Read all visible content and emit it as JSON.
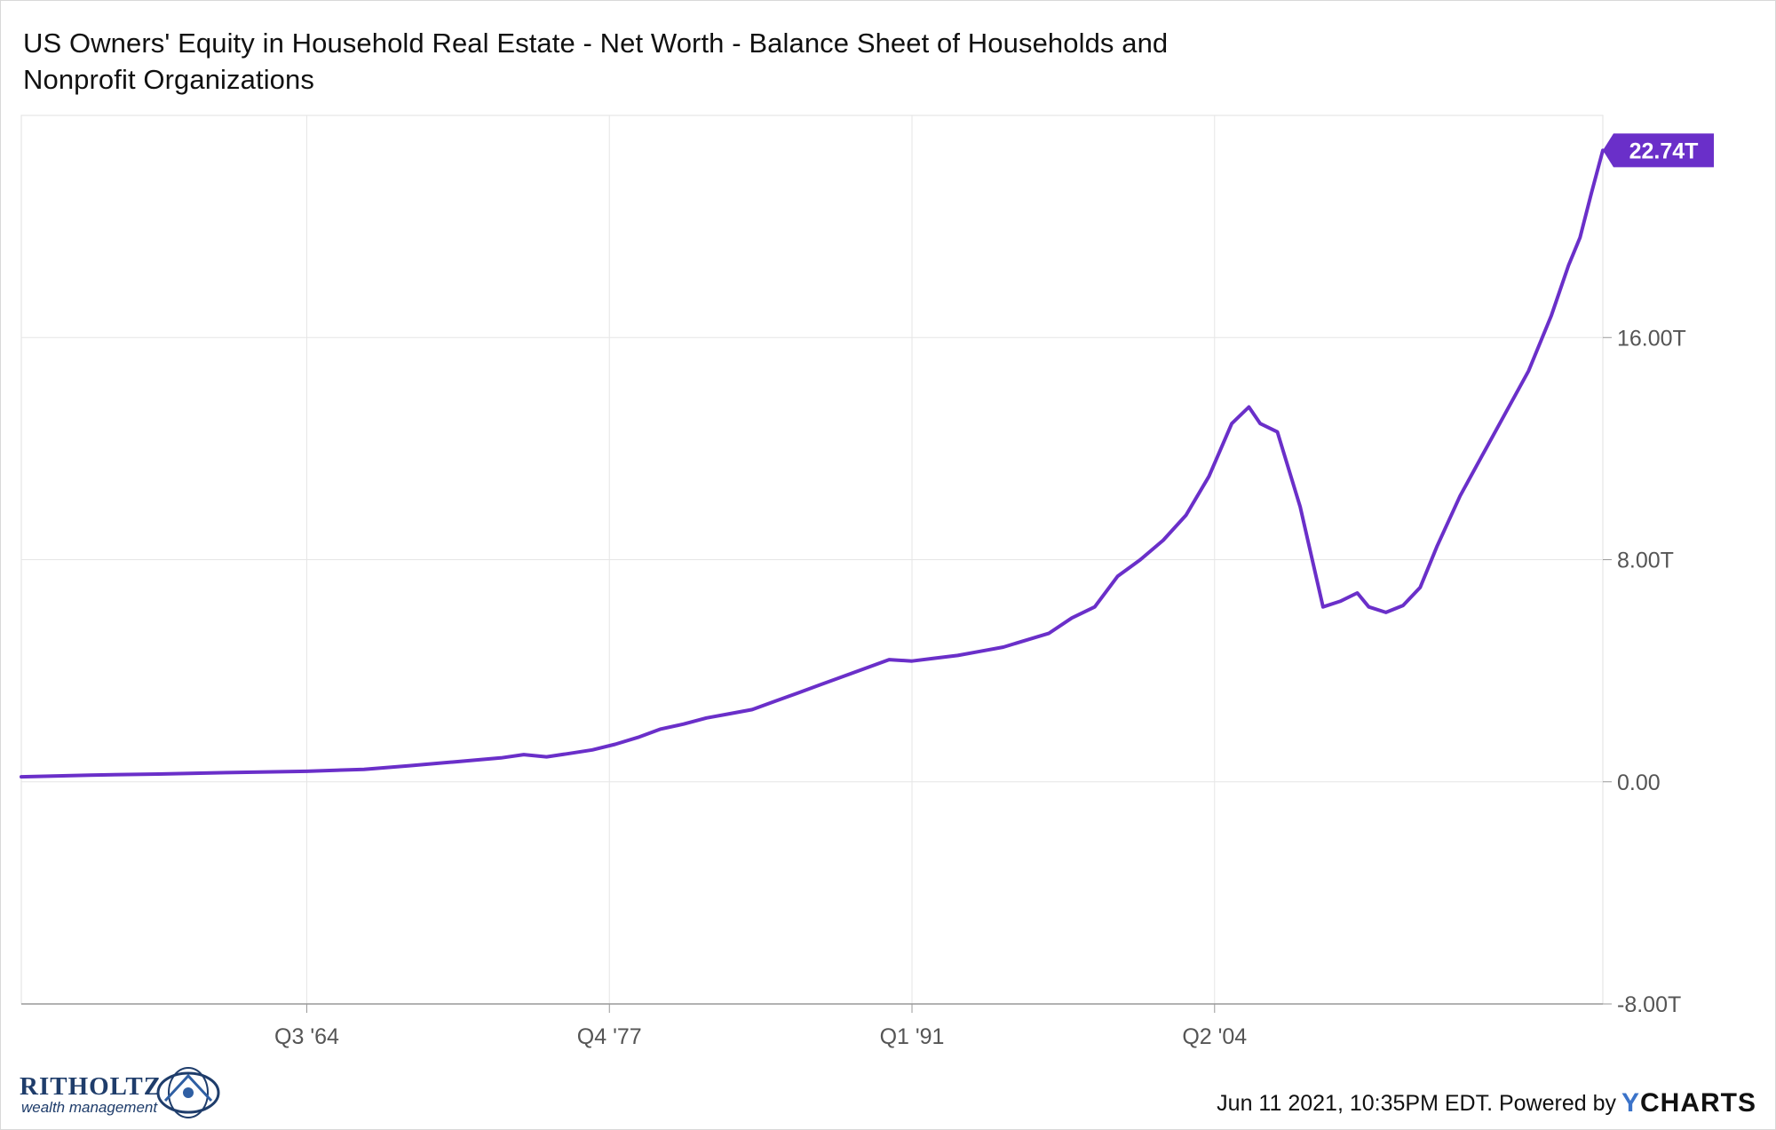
{
  "title": {
    "line1": "US Owners' Equity in Household Real Estate - Net Worth - Balance Sheet of Households and",
    "line2": "Nonprofit Organizations"
  },
  "footer": {
    "credit": "Jun 11 2021, 10:35PM EDT. Powered by",
    "ycharts_y": "Y",
    "ycharts_rest": "CHARTS",
    "brand_name": "RITHOLTZ",
    "brand_sub": "wealth management"
  },
  "colors": {
    "line": "#6a2fc9",
    "grid": "#e6e6e6",
    "axis_text": "#555555",
    "badge_bg": "#6a2fc9",
    "badge_text": "#ffffff"
  },
  "chart_data": {
    "type": "line",
    "title": "US Owners' Equity in Household Real Estate - Net Worth - Balance Sheet of Households and Nonprofit Organizations",
    "x_unit": "year",
    "xlim": [
      1952.0,
      2021.25
    ],
    "ylim": [
      -8,
      24
    ],
    "y_ticks": [
      -8,
      0,
      8,
      16
    ],
    "y_tick_labels": [
      "-8.00T",
      "0.00",
      "8.00T",
      "16.00T"
    ],
    "x_ticks": [
      1964.5,
      1977.75,
      1991.0,
      2004.25
    ],
    "x_tick_labels": [
      "Q3 '64",
      "Q4 '77",
      "Q1 '91",
      "Q2 '04"
    ],
    "grid": true,
    "last_value_label": "22.74T",
    "series": [
      {
        "values": [
          [
            1952.0,
            0.18
          ],
          [
            1955.0,
            0.24
          ],
          [
            1958.0,
            0.28
          ],
          [
            1961.0,
            0.33
          ],
          [
            1964.5,
            0.38
          ],
          [
            1967.0,
            0.45
          ],
          [
            1969.0,
            0.58
          ],
          [
            1971.0,
            0.72
          ],
          [
            1973.0,
            0.86
          ],
          [
            1974.0,
            0.98
          ],
          [
            1975.0,
            0.9
          ],
          [
            1976.0,
            1.02
          ],
          [
            1977.0,
            1.15
          ],
          [
            1978.0,
            1.35
          ],
          [
            1979.0,
            1.6
          ],
          [
            1980.0,
            1.9
          ],
          [
            1981.0,
            2.08
          ],
          [
            1982.0,
            2.3
          ],
          [
            1983.0,
            2.45
          ],
          [
            1984.0,
            2.6
          ],
          [
            1985.0,
            2.9
          ],
          [
            1986.0,
            3.2
          ],
          [
            1987.0,
            3.5
          ],
          [
            1988.0,
            3.8
          ],
          [
            1989.0,
            4.1
          ],
          [
            1990.0,
            4.4
          ],
          [
            1991.0,
            4.35
          ],
          [
            1992.0,
            4.45
          ],
          [
            1993.0,
            4.55
          ],
          [
            1994.0,
            4.7
          ],
          [
            1995.0,
            4.85
          ],
          [
            1996.0,
            5.1
          ],
          [
            1997.0,
            5.35
          ],
          [
            1998.0,
            5.9
          ],
          [
            1999.0,
            6.3
          ],
          [
            2000.0,
            7.4
          ],
          [
            2001.0,
            8.0
          ],
          [
            2002.0,
            8.7
          ],
          [
            2003.0,
            9.6
          ],
          [
            2004.0,
            11.0
          ],
          [
            2005.0,
            12.9
          ],
          [
            2005.75,
            13.5
          ],
          [
            2006.25,
            12.9
          ],
          [
            2007.0,
            12.6
          ],
          [
            2008.0,
            9.9
          ],
          [
            2009.0,
            6.3
          ],
          [
            2009.75,
            6.5
          ],
          [
            2010.5,
            6.8
          ],
          [
            2011.0,
            6.3
          ],
          [
            2011.75,
            6.1
          ],
          [
            2012.5,
            6.35
          ],
          [
            2013.25,
            7.0
          ],
          [
            2014.0,
            8.5
          ],
          [
            2015.0,
            10.3
          ],
          [
            2016.0,
            11.8
          ],
          [
            2017.0,
            13.3
          ],
          [
            2018.0,
            14.8
          ],
          [
            2019.0,
            16.8
          ],
          [
            2019.75,
            18.6
          ],
          [
            2020.25,
            19.6
          ],
          [
            2020.75,
            21.2
          ],
          [
            2021.25,
            22.74
          ]
        ]
      }
    ]
  }
}
